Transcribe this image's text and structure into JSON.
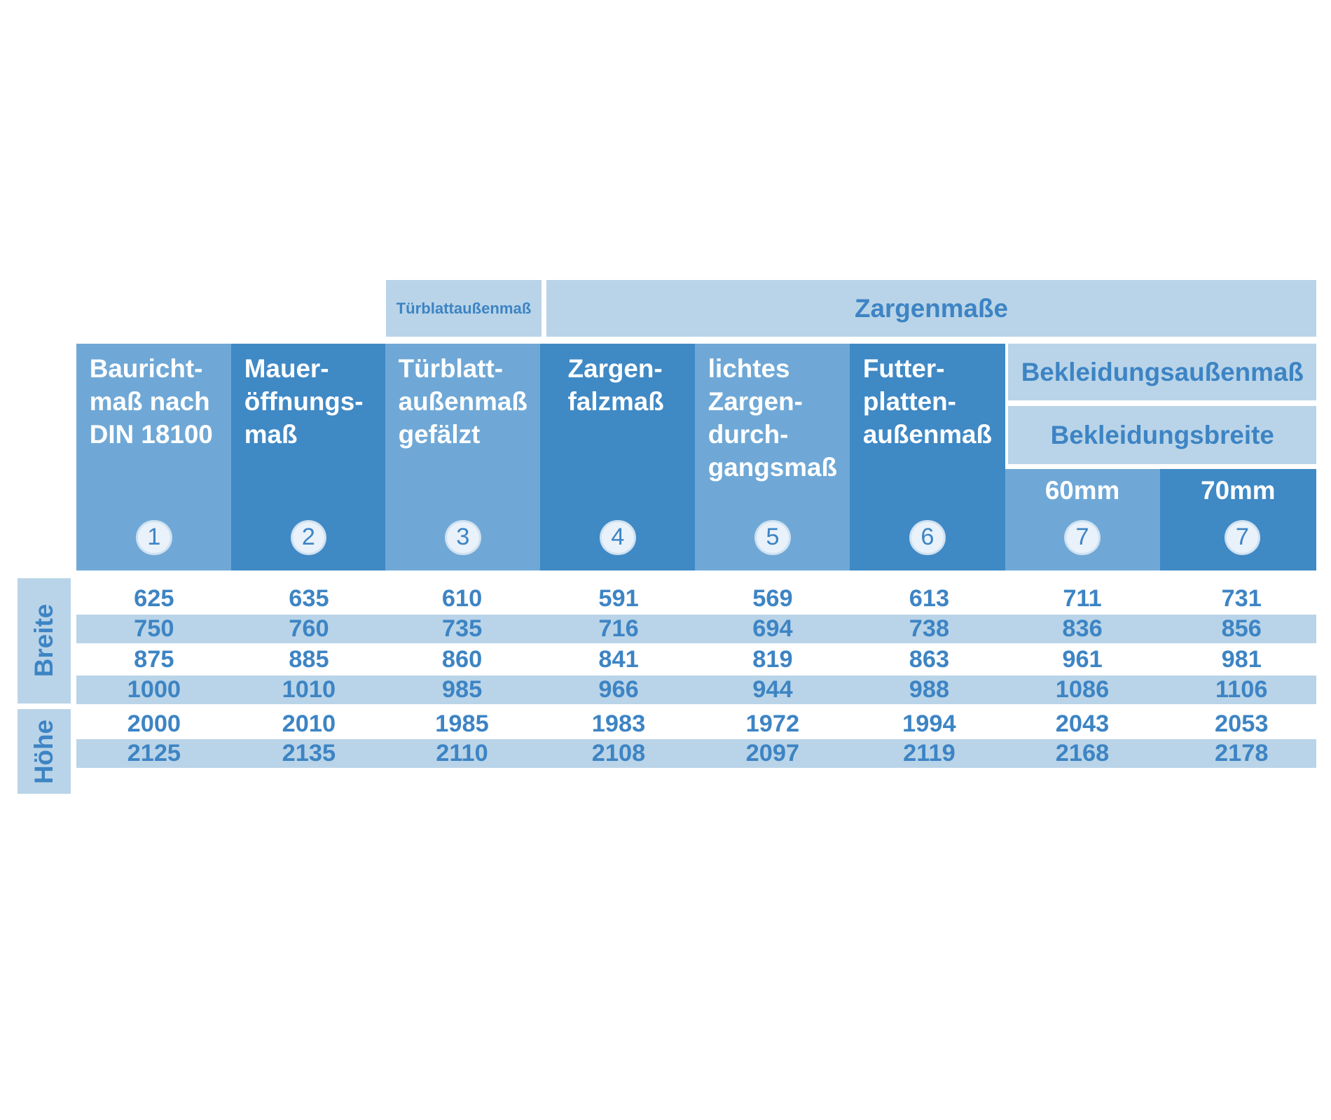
{
  "group_headers": {
    "tuerblatt": "Türblattaußenmaß",
    "zargen": "Zargenmaße"
  },
  "columns": [
    {
      "lines": [
        "Baurich­t-",
        "maß nach",
        "DIN 18100"
      ],
      "number": "1"
    },
    {
      "lines": [
        "Mauer-",
        "öffnungs-",
        "maß"
      ],
      "number": "2"
    },
    {
      "lines": [
        "Türblatt-",
        "außenmaß",
        "gefälzt"
      ],
      "number": "3"
    },
    {
      "lines": [
        "Zargen-",
        "falzmaß"
      ],
      "number": "4"
    },
    {
      "lines": [
        "lichtes",
        "Zargen-",
        "durch-",
        "gangsmaß"
      ],
      "number": "5"
    },
    {
      "lines": [
        "Futter-",
        "platten-",
        "außenmaß"
      ],
      "number": "6"
    }
  ],
  "bekleidung": {
    "title": "Bekleidungsaußenmaß",
    "subtitle": "Bekleidungsbreite",
    "columns": [
      {
        "label": "60mm",
        "number": "7"
      },
      {
        "label": "70mm",
        "number": "7"
      }
    ]
  },
  "row_groups": [
    {
      "label": "Breite",
      "rows": [
        [
          625,
          635,
          610,
          591,
          569,
          613,
          711,
          731
        ],
        [
          750,
          760,
          735,
          716,
          694,
          738,
          836,
          856
        ],
        [
          875,
          885,
          860,
          841,
          819,
          863,
          961,
          981
        ],
        [
          1000,
          1010,
          985,
          966,
          944,
          988,
          1086,
          1106
        ]
      ]
    },
    {
      "label": "Höhe",
      "rows": [
        [
          2000,
          2010,
          1985,
          1983,
          1972,
          1994,
          2043,
          2053
        ],
        [
          2125,
          2135,
          2110,
          2108,
          2097,
          2119,
          2168,
          2178
        ]
      ]
    }
  ]
}
